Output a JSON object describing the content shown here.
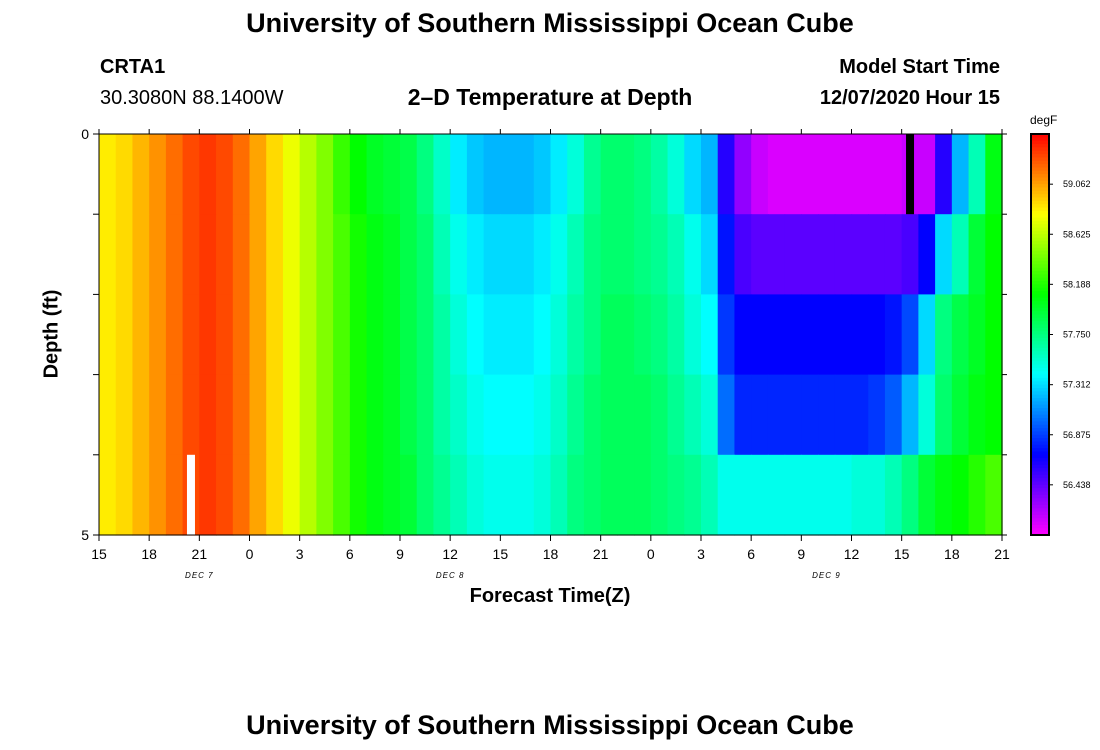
{
  "header": {
    "title": "University of Southern Mississippi Ocean Cube",
    "station": "CRTA1",
    "coords": "30.3080N 88.1400W",
    "subtitle": "2–D Temperature at Depth",
    "model_label": "Model Start Time",
    "model_time": "12/07/2020 Hour 15"
  },
  "footer": {
    "title": "University of Southern Mississippi Ocean Cube"
  },
  "chart_data": {
    "type": "heatmap",
    "title": "2–D Temperature at Depth",
    "xlabel": "Forecast Time(Z)",
    "ylabel": "Depth (ft)",
    "ylim": [
      0,
      5
    ],
    "y_tick_labels": [
      "0",
      "5"
    ],
    "x_start_hour_index": 0,
    "x_tick_labels": [
      "15",
      "18",
      "21",
      "0",
      "3",
      "6",
      "9",
      "12",
      "15",
      "18",
      "21",
      "0",
      "3",
      "6",
      "9",
      "12",
      "15",
      "18",
      "21"
    ],
    "date_labels": [
      {
        "text": "DEC 7",
        "tick_index": 2
      },
      {
        "text": "DEC 8",
        "tick_index": 7
      },
      {
        "text": "DEC 9",
        "tick_index": 14.5
      }
    ],
    "colorbar": {
      "unit": "degF",
      "min": 56.0,
      "max": 59.5,
      "tick_values": [
        "56.438",
        "56.875",
        "57.312",
        "57.750",
        "58.188",
        "58.625",
        "59.062"
      ]
    },
    "depth_levels": 5,
    "hours": [
      0,
      1,
      2,
      3,
      4,
      5,
      6,
      7,
      8,
      9,
      10,
      11,
      12,
      13,
      14,
      15,
      16,
      17,
      18,
      19,
      20,
      21,
      22,
      23,
      24,
      25,
      26,
      27,
      28,
      29,
      30,
      31,
      32,
      33,
      34,
      35,
      36,
      37,
      38,
      39,
      40,
      41,
      42,
      43,
      44,
      45,
      46,
      47,
      48,
      49,
      50,
      51,
      52,
      53,
      54
    ],
    "values": [
      [
        58.85,
        58.9,
        59.0,
        59.1,
        59.2,
        59.3,
        59.35,
        59.3,
        59.2,
        59.05,
        58.9,
        58.75,
        58.6,
        58.45,
        58.25,
        58.1,
        58.0,
        57.95,
        57.9,
        57.75,
        57.55,
        57.35,
        57.25,
        57.2,
        57.2,
        57.2,
        57.25,
        57.35,
        57.5,
        57.7,
        57.8,
        57.8,
        57.75,
        57.65,
        57.5,
        57.3,
        57.2,
        56.6,
        56.3,
        56.15,
        56.1,
        56.1,
        56.1,
        56.1,
        56.1,
        56.1,
        56.1,
        56.1,
        56.15,
        56.15,
        56.6,
        57.2,
        57.6,
        58.05,
        58.2
      ],
      [
        58.85,
        58.9,
        59.0,
        59.1,
        59.2,
        59.3,
        59.35,
        59.3,
        59.2,
        59.05,
        58.9,
        58.75,
        58.6,
        58.45,
        58.3,
        58.15,
        58.05,
        58.0,
        57.9,
        57.8,
        57.6,
        57.45,
        57.35,
        57.3,
        57.3,
        57.3,
        57.35,
        57.45,
        57.6,
        57.75,
        57.8,
        57.8,
        57.75,
        57.7,
        57.6,
        57.45,
        57.3,
        56.75,
        56.5,
        56.45,
        56.45,
        56.45,
        56.45,
        56.45,
        56.45,
        56.45,
        56.45,
        56.45,
        56.5,
        56.7,
        57.3,
        57.6,
        57.95,
        58.1,
        58.2
      ],
      [
        58.85,
        58.9,
        59.0,
        59.1,
        59.2,
        59.3,
        59.35,
        59.3,
        59.2,
        59.05,
        58.9,
        58.75,
        58.6,
        58.45,
        58.3,
        58.15,
        58.05,
        58.0,
        57.9,
        57.8,
        57.65,
        57.5,
        57.4,
        57.35,
        57.35,
        57.35,
        57.4,
        57.5,
        57.65,
        57.75,
        57.85,
        57.85,
        57.8,
        57.75,
        57.65,
        57.5,
        57.4,
        56.85,
        56.7,
        56.7,
        56.7,
        56.7,
        56.7,
        56.7,
        56.7,
        56.7,
        56.7,
        56.75,
        56.9,
        57.3,
        57.75,
        57.9,
        58.0,
        58.1,
        58.2
      ],
      [
        58.85,
        58.9,
        59.0,
        59.1,
        59.2,
        59.3,
        59.35,
        59.3,
        59.2,
        59.05,
        58.9,
        58.75,
        58.6,
        58.45,
        58.3,
        58.15,
        58.05,
        58.0,
        57.9,
        57.8,
        57.65,
        57.55,
        57.45,
        57.4,
        57.4,
        57.4,
        57.45,
        57.55,
        57.7,
        57.8,
        57.85,
        57.85,
        57.85,
        57.8,
        57.7,
        57.6,
        57.5,
        57.0,
        56.8,
        56.8,
        56.8,
        56.8,
        56.8,
        56.8,
        56.8,
        56.8,
        56.85,
        56.95,
        57.2,
        57.5,
        57.8,
        57.95,
        58.05,
        58.1,
        58.2
      ],
      [
        58.85,
        58.9,
        59.0,
        59.1,
        59.2,
        59.3,
        59.35,
        59.3,
        59.2,
        59.05,
        58.9,
        58.75,
        58.6,
        58.45,
        58.3,
        58.15,
        58.05,
        58.0,
        57.95,
        57.8,
        57.7,
        57.6,
        57.5,
        57.45,
        57.45,
        57.45,
        57.5,
        57.6,
        57.75,
        57.8,
        57.85,
        57.85,
        57.85,
        57.8,
        57.75,
        57.7,
        57.6,
        57.45,
        57.45,
        57.45,
        57.45,
        57.45,
        57.45,
        57.45,
        57.45,
        57.5,
        57.5,
        57.6,
        57.75,
        57.95,
        58.05,
        58.1,
        58.2,
        58.3,
        58.4
      ]
    ],
    "markers": [
      {
        "hour": 5.5,
        "depth_level": 4,
        "color": "#ffffff"
      },
      {
        "hour": 48.5,
        "depth_level": 0,
        "color": "#000000"
      }
    ]
  }
}
